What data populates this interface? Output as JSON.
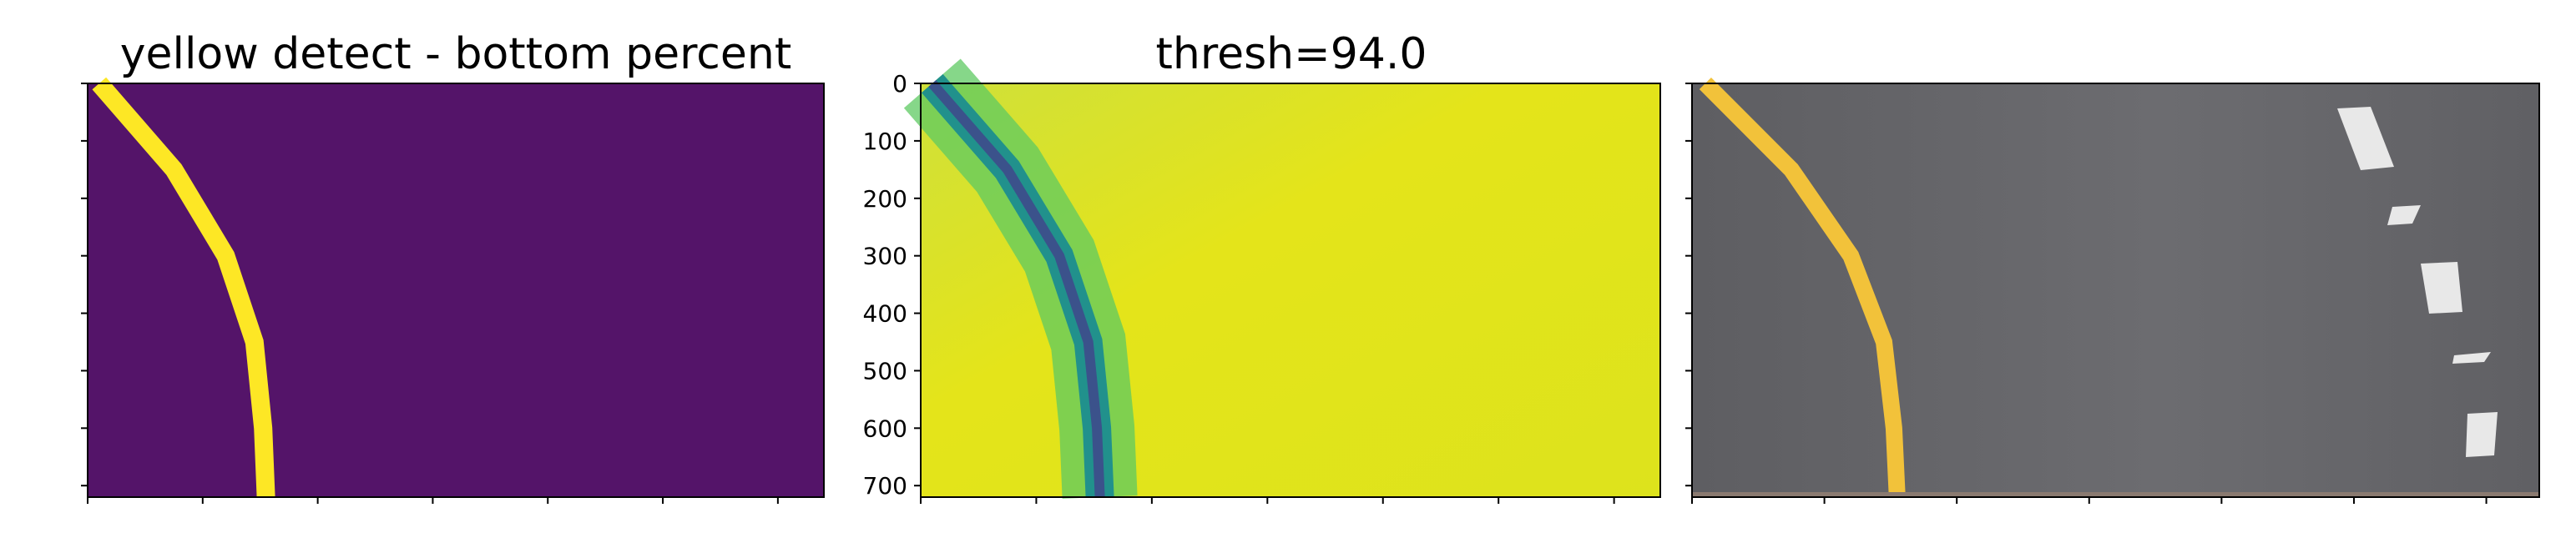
{
  "figure": {
    "background": "#ffffff"
  },
  "chart_data": [
    {
      "type": "heatmap",
      "title": "yellow detect - bottom percent",
      "colormap": "viridis (binary)",
      "colors": {
        "background": "#541469",
        "lane": "#fde725"
      },
      "lane_curve": [
        [
          20,
          0
        ],
        [
          150,
          150
        ],
        [
          240,
          300
        ],
        [
          290,
          450
        ],
        [
          305,
          600
        ],
        [
          310,
          720
        ]
      ],
      "xlim": [
        0,
        1280
      ],
      "ylim": [
        720,
        0
      ],
      "xticks": [
        0,
        200,
        400,
        600,
        800,
        1000,
        1200
      ],
      "yticks": [
        0,
        100,
        200,
        300,
        400,
        500,
        600,
        700
      ],
      "show_tick_labels": false,
      "grid": false
    },
    {
      "type": "heatmap",
      "title": "thresh=94.0",
      "colormap": "viridis",
      "colors": {
        "background": "#d7e21e",
        "mid": "#5ec962",
        "lane": "#21918c",
        "core": "#3b528b"
      },
      "lane_curve": [
        [
          20,
          0
        ],
        [
          150,
          150
        ],
        [
          240,
          300
        ],
        [
          290,
          450
        ],
        [
          305,
          600
        ],
        [
          310,
          720
        ]
      ],
      "xlim": [
        0,
        1280
      ],
      "ylim": [
        720,
        0
      ],
      "xticks": [
        0,
        200,
        400,
        600,
        800,
        1000,
        1200
      ],
      "yticks": [
        0,
        100,
        200,
        300,
        400,
        500,
        600,
        700
      ],
      "ytick_labels": [
        "0",
        "100",
        "200",
        "300",
        "400",
        "500",
        "600",
        "700"
      ],
      "grid": false
    },
    {
      "type": "image",
      "title": "",
      "colors": {
        "road": "#66666b",
        "lane": "#f2c23a",
        "marking": "#e8e8e8",
        "bottom_edge": "#8a7a70"
      },
      "lane_curve": [
        [
          20,
          0
        ],
        [
          150,
          150
        ],
        [
          240,
          300
        ],
        [
          290,
          450
        ],
        [
          305,
          600
        ],
        [
          310,
          720
        ]
      ],
      "xlim": [
        0,
        1280
      ],
      "ylim": [
        720,
        0
      ],
      "xticks": [
        0,
        200,
        400,
        600,
        800,
        1000,
        1200
      ],
      "yticks": [
        0,
        100,
        200,
        300,
        400,
        500,
        600,
        700
      ],
      "show_tick_labels": false,
      "grid": false
    }
  ]
}
